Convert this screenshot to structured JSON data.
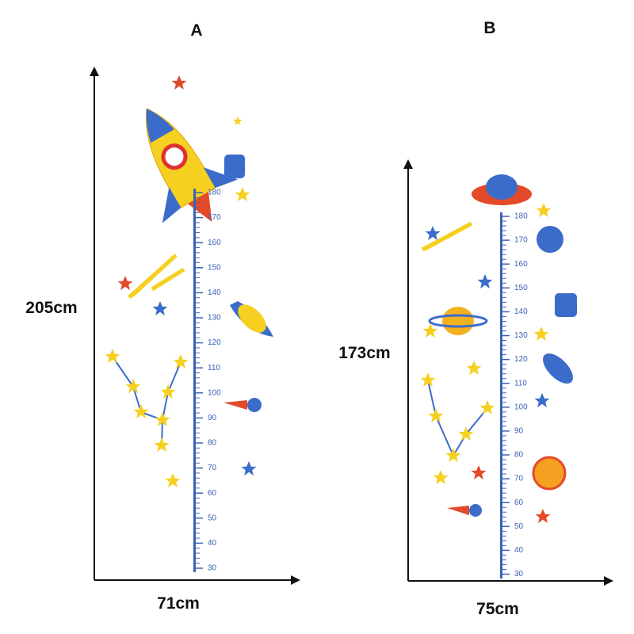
{
  "panel_a": {
    "label": "A",
    "height": "205cm",
    "width": "71cm",
    "ruler_ticks": [
      180,
      170,
      160,
      150,
      140,
      130,
      120,
      110,
      100,
      90,
      80,
      70,
      60,
      50,
      40,
      30
    ]
  },
  "panel_b": {
    "label": "B",
    "height": "173cm",
    "width": "75cm",
    "ruler_ticks": [
      180,
      170,
      160,
      150,
      140,
      130,
      120,
      110,
      100,
      90,
      80,
      70,
      60,
      50,
      40,
      30
    ]
  }
}
